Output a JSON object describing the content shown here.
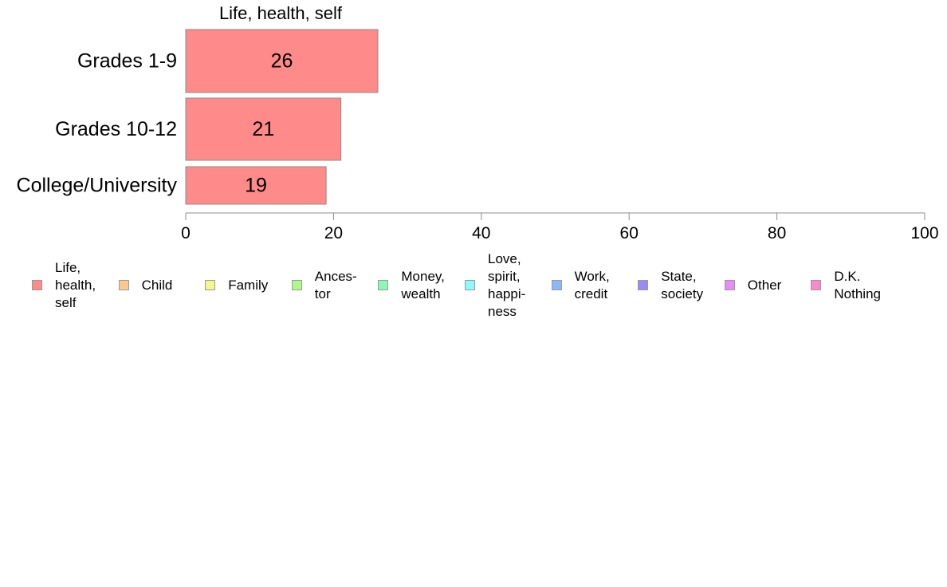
{
  "chart_data": {
    "type": "bar",
    "orientation": "horizontal",
    "title": "Life, health, self",
    "categories": [
      "Grades 1-9",
      "Grades 10-12",
      "College/University"
    ],
    "series": [
      {
        "name": "Life, health, self",
        "values": [
          26,
          21,
          19
        ],
        "color": "#ff8a8a"
      }
    ],
    "data_labels": [
      "26",
      "21",
      "19"
    ],
    "xlim": [
      0,
      100
    ],
    "xticks": [
      0,
      20,
      40,
      60,
      80,
      100
    ],
    "xtick_labels": [
      "0",
      "20",
      "40",
      "60",
      "80",
      "100"
    ],
    "grid": false,
    "legend_position": "bottom",
    "legend": [
      {
        "label": "Life,\nhealth,\nself",
        "color": "#ff8a8a"
      },
      {
        "label": "Child",
        "color": "#ffc78a"
      },
      {
        "label": "Family",
        "color": "#f2f98a"
      },
      {
        "label": "Ances-\ntor",
        "color": "#aef98a"
      },
      {
        "label": "Money,\nwealth",
        "color": "#8af9b8"
      },
      {
        "label": "Love,\nspirit,\nhappi-\nness",
        "color": "#8afafa"
      },
      {
        "label": "Work,\ncredit",
        "color": "#8ab8f9"
      },
      {
        "label": "State,\nsociety",
        "color": "#9a8af9"
      },
      {
        "label": "Other",
        "color": "#e98af9"
      },
      {
        "label": "D.K.\nNothing",
        "color": "#f98ad0"
      }
    ]
  }
}
